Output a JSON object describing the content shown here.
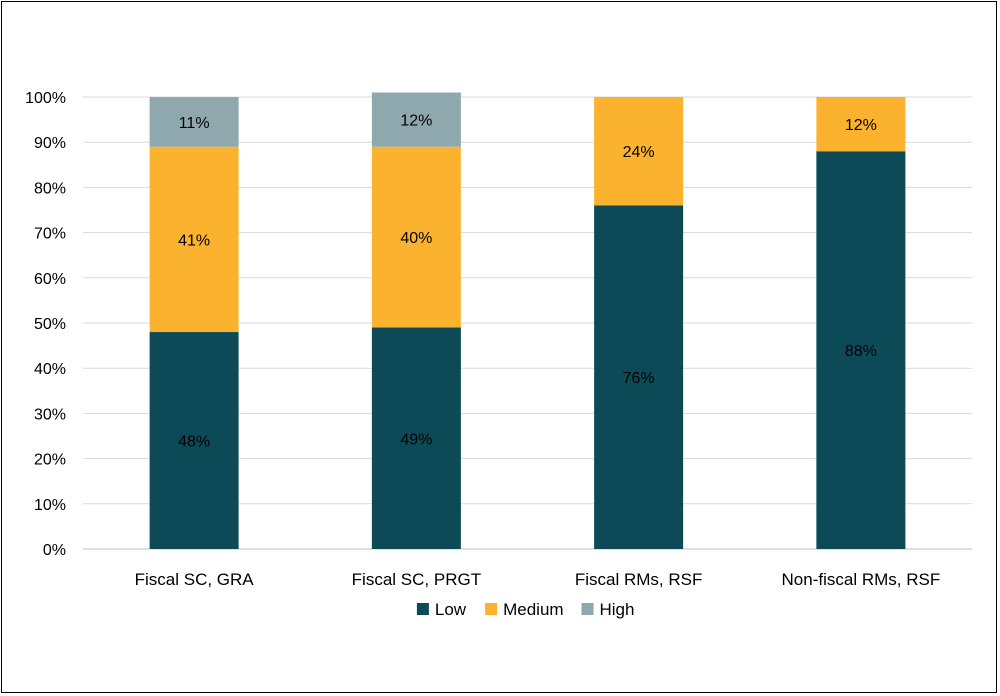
{
  "chart_data": {
    "type": "bar",
    "stacked": true,
    "categories": [
      "Fiscal SC, GRA",
      "Fiscal SC, PRGT",
      "Fiscal RMs, RSF",
      "Non-fiscal RMs, RSF"
    ],
    "series": [
      {
        "name": "Low",
        "color": "#0d4a57",
        "values": [
          48,
          49,
          76,
          88
        ],
        "labels": [
          "48%",
          "49%",
          "76%",
          "88%"
        ]
      },
      {
        "name": "Medium",
        "color": "#fbb32f",
        "values": [
          41,
          40,
          24,
          12
        ],
        "labels": [
          "41%",
          "40%",
          "24%",
          "12%"
        ]
      },
      {
        "name": "High",
        "color": "#8fa8ae",
        "values": [
          11,
          12,
          0,
          0
        ],
        "labels": [
          "11%",
          "12%",
          "",
          ""
        ]
      }
    ],
    "ylim": [
      0,
      100
    ],
    "yticks": [
      "0%",
      "10%",
      "20%",
      "30%",
      "40%",
      "50%",
      "60%",
      "70%",
      "80%",
      "90%",
      "100%"
    ],
    "grid": true,
    "legend_position": "bottom",
    "title": "",
    "xlabel": "",
    "ylabel": ""
  }
}
